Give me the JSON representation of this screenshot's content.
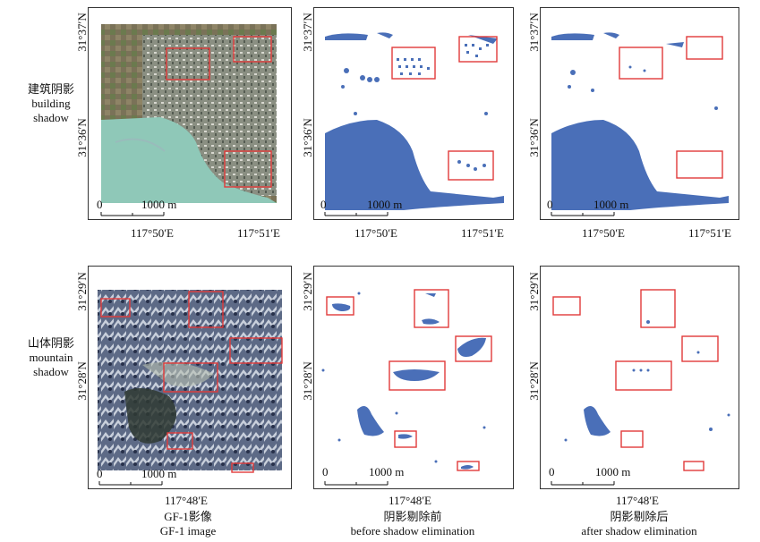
{
  "rows": [
    {
      "label_cn": "建筑阴影",
      "label_en_1": "building",
      "label_en_2": "shadow",
      "lat_top": "31°37′N",
      "lat_bottom": "31°36′N",
      "lon_left": "117°50′E",
      "lon_right": "117°51′E"
    },
    {
      "label_cn": "山体阴影",
      "label_en_1": "mountain",
      "label_en_2": "shadow",
      "lat_top": "31°29′N",
      "lat_bottom": "31°28′N",
      "lon_center": "117°48′E"
    }
  ],
  "scale_bar": {
    "start": "0",
    "end": "1000 m"
  },
  "columns": [
    {
      "cn": "GF-1影像",
      "en": "GF-1 image"
    },
    {
      "cn": "阴影剔除前",
      "en": "before shadow elimination"
    },
    {
      "cn": "阴影剔除后",
      "en": "after shadow elimination"
    }
  ],
  "colors": {
    "shadow": "#4a6fb8",
    "box": "#e23a3a",
    "water": "#8fc8b8"
  }
}
